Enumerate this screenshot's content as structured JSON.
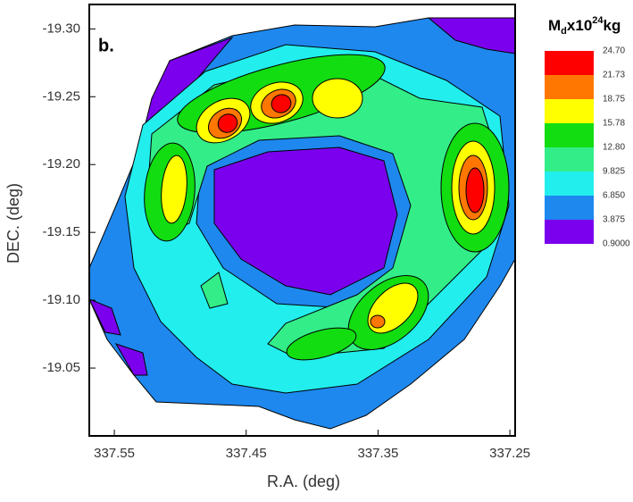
{
  "chart_data": {
    "type": "contour",
    "panel_label": "b.",
    "xlabel": "R.A. (deg)",
    "ylabel": "DEC. (deg)",
    "xlim": [
      337.569,
      337.246
    ],
    "ylim": [
      -19.0,
      -19.318
    ],
    "xticks": [
      337.55,
      337.45,
      337.35,
      337.25
    ],
    "yticks": [
      {
        "value": -19.3,
        "label": "-19.30"
      },
      {
        "value": -19.25,
        "label": "-19.25"
      },
      {
        "value": -19.2,
        "label": "-19.20"
      },
      {
        "value": -19.15,
        "label": "-19.15"
      },
      {
        "value": -19.1,
        "label": "-19.10"
      },
      {
        "value": -19.05,
        "label": "-19.05"
      }
    ],
    "colorbar_title": {
      "base": "M",
      "sub": "d",
      "mid": "x10",
      "sup": "24",
      "unit": "kg"
    },
    "levels": [
      {
        "value": 0.9,
        "label": "0.9000"
      },
      3.875,
      {
        "value": 6.85,
        "label": "6.850"
      },
      9.825,
      {
        "value": 12.8,
        "label": "12.80"
      },
      15.78,
      18.75,
      21.73,
      {
        "value": 24.7,
        "label": "24.70"
      }
    ],
    "colors": [
      "#7b00ee",
      "#1e88ee",
      "#22eeee",
      "#33ee88",
      "#11dd11",
      "#ffff00",
      "#ff7700",
      "#ff0000"
    ]
  }
}
